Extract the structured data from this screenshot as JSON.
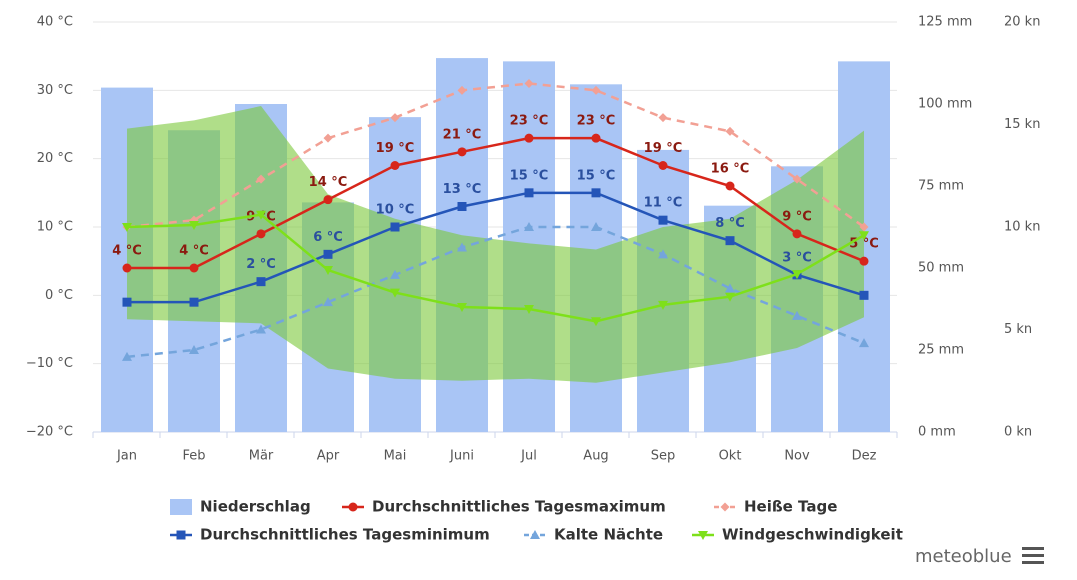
{
  "chart_data": {
    "type": "combo",
    "categories": [
      "Jan",
      "Feb",
      "Mär",
      "Apr",
      "Mai",
      "Juni",
      "Jul",
      "Aug",
      "Sep",
      "Okt",
      "Nov",
      "Dez"
    ],
    "ylim": [
      -20,
      40
    ],
    "yticks": [
      {
        "value": -20,
        "label": "−20 °C"
      },
      {
        "value": -10,
        "label": "−10 °C"
      },
      {
        "value": 0,
        "label": "0 °C"
      },
      {
        "value": 10,
        "label": "10 °C"
      },
      {
        "value": 20,
        "label": "20 °C"
      },
      {
        "value": 30,
        "label": "30 °C"
      },
      {
        "value": 40,
        "label": "40 °C"
      }
    ],
    "y2lim": [
      0,
      125
    ],
    "y2ticks": [
      {
        "value": 0,
        "label": "0 mm"
      },
      {
        "value": 25,
        "label": "25 mm"
      },
      {
        "value": 50,
        "label": "50 mm"
      },
      {
        "value": 75,
        "label": "75 mm"
      },
      {
        "value": 100,
        "label": "100 mm"
      },
      {
        "value": 125,
        "label": "125 mm"
      }
    ],
    "y3lim": [
      0,
      20
    ],
    "y3ticks": [
      {
        "value": 0,
        "label": "0 kn"
      },
      {
        "value": 5,
        "label": "5 kn"
      },
      {
        "value": 10,
        "label": "10 kn"
      },
      {
        "value": 15,
        "label": "15 kn"
      },
      {
        "value": 20,
        "label": "20 kn"
      }
    ],
    "grid": true,
    "branding": "meteoblue",
    "series": [
      {
        "name": "Niederschlag",
        "type": "bar",
        "axis": "y2",
        "color": "#a9c5f5",
        "values": [
          105,
          92,
          100,
          70,
          96,
          114,
          113,
          106,
          86,
          69,
          81,
          113
        ]
      },
      {
        "name": "Durchschnittliches Tagesmaximum",
        "type": "line",
        "marker": "circle",
        "color": "#d7261b",
        "label_color": "#8b1a10",
        "values": [
          4,
          4,
          9,
          14,
          19,
          21,
          23,
          23,
          19,
          16,
          9,
          5
        ],
        "value_labels": [
          "4 °C",
          "4 °C",
          "9 °C",
          "14 °C",
          "19 °C",
          "21 °C",
          "23 °C",
          "23 °C",
          "19 °C",
          "16 °C",
          "9 °C",
          "5 °C"
        ]
      },
      {
        "name": "Heiße Tage",
        "type": "line",
        "dash": true,
        "marker": "diamond",
        "color": "#f2a094",
        "values": [
          10,
          11,
          17,
          23,
          26,
          30,
          31,
          30,
          26,
          24,
          17,
          10
        ]
      },
      {
        "name": "Durchschnittliches Tagesminimum",
        "type": "line",
        "marker": "square",
        "color": "#2455b8",
        "label_color": "#2a4f9e",
        "values": [
          -1,
          -1,
          2,
          6,
          10,
          13,
          15,
          15,
          11,
          8,
          3,
          0
        ],
        "value_labels": [
          null,
          null,
          "2 °C",
          "6 °C",
          "10 °C",
          "13 °C",
          "15 °C",
          "15 °C",
          "11 °C",
          "8 °C",
          "3 °C",
          null
        ]
      },
      {
        "name": "Kalte Nächte",
        "type": "line",
        "dash": true,
        "marker": "triangle",
        "color": "#74a5dc",
        "values": [
          -9,
          -8,
          -5,
          -1,
          3,
          7,
          10,
          10,
          6,
          1,
          -3,
          -7
        ]
      },
      {
        "name": "Windgeschwindigkeit",
        "type": "line",
        "axis": "y3",
        "marker": "triangle-down",
        "color": "#7ee01a",
        "range_color": "#7cc83a",
        "values": [
          10,
          10.1,
          10.6,
          7.9,
          6.8,
          6.1,
          6,
          5.4,
          6.2,
          6.6,
          7.7,
          9.6
        ],
        "range_low": [
          5.5,
          5.4,
          5.3,
          3.1,
          2.6,
          2.5,
          2.6,
          2.4,
          2.9,
          3.4,
          4.1,
          5.6
        ],
        "range_high": [
          14.8,
          15.2,
          15.9,
          11.6,
          10.4,
          9.6,
          9.2,
          8.9,
          10,
          10.4,
          12.3,
          14.7
        ]
      }
    ]
  }
}
